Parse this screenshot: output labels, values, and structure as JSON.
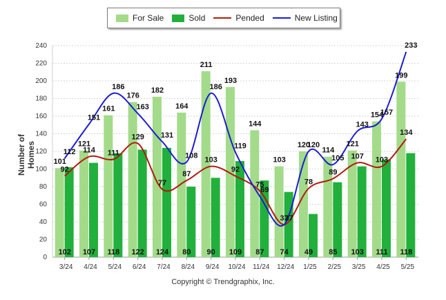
{
  "legend": {
    "for_sale": "For Sale",
    "sold": "Sold",
    "pended": "Pended",
    "new_listing": "New Listing"
  },
  "footer": "Copyright © Trendgraphix, Inc.",
  "colors": {
    "for_sale": "#a3db8a",
    "sold": "#22b03c",
    "pended": "#b21a0e",
    "new_listing": "#1b1bd6"
  },
  "chart_data": {
    "type": "bar",
    "title": "",
    "xlabel": "",
    "ylabel": "Number of Homes",
    "ylim": [
      0,
      240
    ],
    "yticks": [
      0,
      20,
      40,
      60,
      80,
      100,
      120,
      140,
      160,
      180,
      200,
      220,
      240
    ],
    "grid": true,
    "legend_position": "top",
    "categories": [
      "3/24",
      "4/24",
      "5/24",
      "6/24",
      "7/24",
      "8/24",
      "9/24",
      "10/24",
      "11/24",
      "12/24",
      "1/25",
      "2/25",
      "3/25",
      "4/25",
      "5/25"
    ],
    "series": [
      {
        "name": "For Sale",
        "kind": "bar",
        "values": [
          101,
          121,
          161,
          176,
          182,
          164,
          211,
          193,
          144,
          103,
          120,
          114,
          121,
          154,
          199
        ]
      },
      {
        "name": "Sold",
        "kind": "bar",
        "values": [
          102,
          107,
          118,
          122,
          124,
          80,
          90,
          109,
          87,
          74,
          49,
          85,
          103,
          111,
          118
        ]
      },
      {
        "name": "Pended",
        "kind": "line",
        "values": [
          92,
          114,
          111,
          129,
          77,
          87,
          103,
          92,
          75,
          37,
          78,
          89,
          107,
          103,
          134
        ]
      },
      {
        "name": "New Listing",
        "kind": "line",
        "values": [
          112,
          151,
          186,
          163,
          131,
          108,
          186,
          119,
          69,
          37,
          120,
          105,
          143,
          157,
          233
        ]
      }
    ]
  }
}
